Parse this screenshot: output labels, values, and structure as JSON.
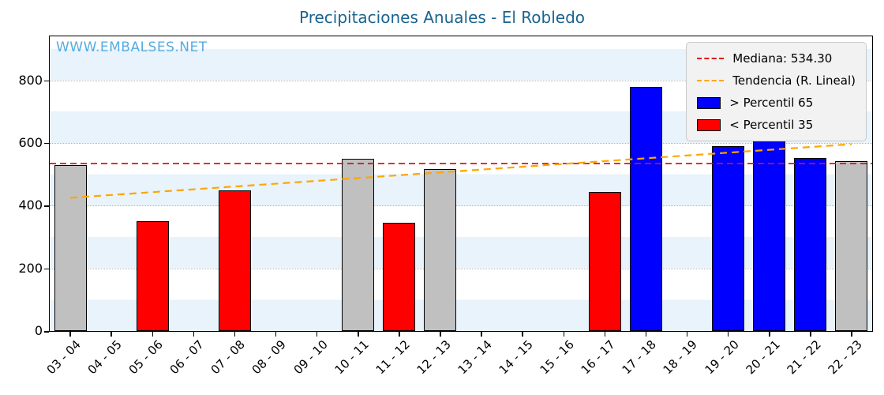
{
  "title": "Precipitaciones Anuales - El Robledo",
  "watermark": "WWW.EMBALSES.NET",
  "legend": {
    "median_label": "Mediana: 534.30",
    "trend_label": "Tendencia (R. Lineal)",
    "p65_label": "> Percentil 65",
    "p35_label": "< Percentil 35"
  },
  "colors": {
    "title": "#1a648f",
    "watermark": "#56ace0",
    "median_line": "#e01010",
    "trend_line": "#ffa500",
    "bar_gray": "#c0c0c0",
    "bar_red": "#ff0000",
    "bar_blue": "#0000ff",
    "bar_border": "#000000",
    "stripe": "#e9f3fb"
  },
  "chart_data": {
    "type": "bar",
    "title": "Precipitaciones Anuales - El Robledo",
    "xlabel": "",
    "ylabel": "",
    "categories": [
      "03 - 04",
      "04 - 05",
      "05 - 06",
      "06 - 07",
      "07 - 08",
      "08 - 09",
      "09 - 10",
      "10 - 11",
      "11 - 12",
      "12 - 13",
      "13 - 14",
      "14 - 15",
      "15 - 16",
      "16 - 17",
      "17 - 18",
      "18 - 19",
      "19 - 20",
      "20 - 21",
      "21 - 22",
      "22 - 23"
    ],
    "values": [
      529,
      null,
      350,
      null,
      448,
      null,
      null,
      549,
      345,
      516,
      null,
      null,
      null,
      443,
      779,
      null,
      589,
      607,
      553,
      541
    ],
    "bar_colors": [
      "gray",
      null,
      "red",
      null,
      "red",
      null,
      null,
      "gray",
      "red",
      "gray",
      null,
      null,
      null,
      "red",
      "blue",
      null,
      "blue",
      "blue",
      "blue",
      "gray"
    ],
    "median": 534.3,
    "trend": {
      "start": 425,
      "end": 596
    },
    "yticks": [
      0,
      200,
      400,
      600,
      800
    ],
    "ylim": [
      0,
      940
    ],
    "grid": "dotted horizontal at yticks",
    "legend_position": "upper right",
    "background": "alternating 100-unit horizontal stripes (light blue / white)"
  }
}
